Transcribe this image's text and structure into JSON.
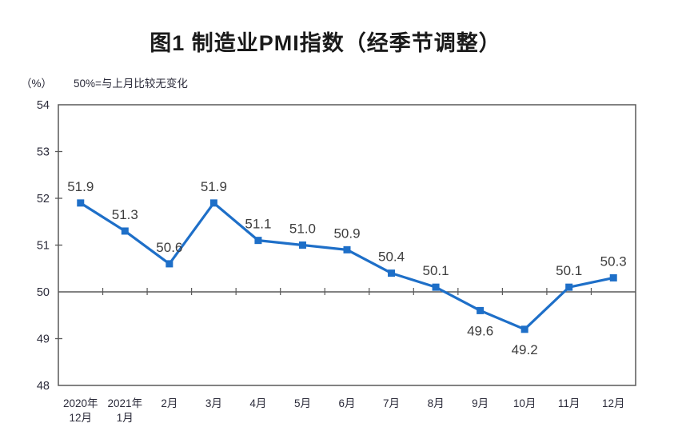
{
  "title": "图1 制造业PMI指数（经季节调整）",
  "unit_label": "（%）",
  "note": "50%=与上月比较无变化",
  "colors": {
    "line": "#1e6fc8",
    "marker": "#1e6fc8",
    "axis": "#595959",
    "axis_text": "#2b2b3a",
    "data_label_text": "#3d3d3d",
    "title_text": "#1a1a1a",
    "plot_background": "#ffffff"
  },
  "chart_data": {
    "type": "line",
    "title": "图1 制造业PMI指数（经季节调整）",
    "subtitle": "50%=与上月比较无变化",
    "ylabel": "（%）",
    "xlabel": "",
    "categories": [
      [
        "2020年",
        "12月"
      ],
      [
        "2021年",
        "1月"
      ],
      "2月",
      "3月",
      "4月",
      "5月",
      "6月",
      "7月",
      "8月",
      "9月",
      "10月",
      "11月",
      "12月"
    ],
    "values": [
      51.9,
      51.3,
      50.6,
      51.9,
      51.1,
      51.0,
      50.9,
      50.4,
      50.1,
      49.6,
      49.2,
      50.1,
      50.3
    ],
    "data_labels": [
      "51.9",
      "51.3",
      "50.6",
      "51.9",
      "51.1",
      "51.0",
      "50.9",
      "50.4",
      "50.1",
      "49.6",
      "49.2",
      "50.1",
      "50.3"
    ],
    "label_positions": [
      "above",
      "above",
      "above",
      "above",
      "above",
      "above",
      "above",
      "above",
      "above",
      "below",
      "below",
      "above",
      "above"
    ],
    "ylim": [
      48,
      54
    ],
    "ytick_step": 1,
    "reference_line": 50,
    "grid": false,
    "legend": "none",
    "series_name": "制造业PMI"
  }
}
